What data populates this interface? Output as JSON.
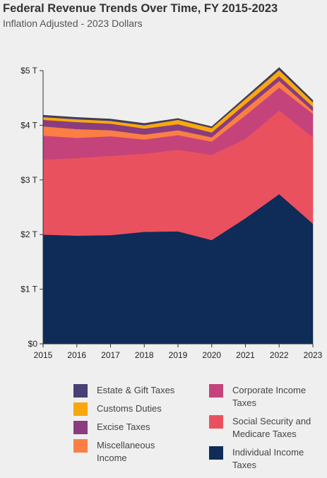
{
  "title": "Federal Revenue Trends Over Time, FY 2015-2023",
  "subtitle": "Inflation Adjusted - 2023 Dollars",
  "chart_data": {
    "type": "area",
    "stacked": true,
    "x": [
      "2015",
      "2016",
      "2017",
      "2018",
      "2019",
      "2020",
      "2021",
      "2022",
      "2023"
    ],
    "ylim": [
      0,
      5
    ],
    "yticks": [
      "$0",
      "$1 T",
      "$2 T",
      "$3 T",
      "$4 T",
      "$5 T"
    ],
    "grid": false,
    "legend_position": "bottom",
    "series": [
      {
        "name": "Individual Income Taxes",
        "color": "#0e2c57",
        "values": [
          2.0,
          1.98,
          1.99,
          2.05,
          2.06,
          1.9,
          2.3,
          2.74,
          2.2
        ]
      },
      {
        "name": "Social Security and Medicare Taxes",
        "color": "#ea515f",
        "values": [
          1.37,
          1.42,
          1.45,
          1.43,
          1.49,
          1.56,
          1.45,
          1.53,
          1.58
        ]
      },
      {
        "name": "Corporate Income Taxes",
        "color": "#c5437b",
        "values": [
          0.44,
          0.37,
          0.36,
          0.26,
          0.27,
          0.24,
          0.43,
          0.42,
          0.43
        ]
      },
      {
        "name": "Miscellaneous Income",
        "color": "#fb7e44",
        "values": [
          0.17,
          0.16,
          0.11,
          0.09,
          0.09,
          0.08,
          0.12,
          0.12,
          0.05
        ]
      },
      {
        "name": "Excise Taxes",
        "color": "#8a3c7e",
        "values": [
          0.12,
          0.13,
          0.12,
          0.11,
          0.11,
          0.09,
          0.09,
          0.09,
          0.08
        ]
      },
      {
        "name": "Customs Duties",
        "color": "#f8a80e",
        "values": [
          0.05,
          0.05,
          0.05,
          0.06,
          0.08,
          0.08,
          0.09,
          0.11,
          0.08
        ]
      },
      {
        "name": "Estate & Gift Taxes",
        "color": "#493e75",
        "values": [
          0.03,
          0.03,
          0.03,
          0.03,
          0.02,
          0.02,
          0.03,
          0.04,
          0.03
        ]
      }
    ]
  },
  "legend": [
    {
      "label": "Estate & Gift Taxes",
      "color": "#493e75"
    },
    {
      "label": "Customs Duties",
      "color": "#f8a80e"
    },
    {
      "label": "Excise Taxes",
      "color": "#8a3c7e"
    },
    {
      "label": "Miscellaneous Income",
      "color": "#fb7e44"
    },
    {
      "label": "Corporate Income Taxes",
      "color": "#c5437b"
    },
    {
      "label": "Social Security and Medicare Taxes",
      "color": "#ea515f"
    },
    {
      "label": "Individual Income Taxes",
      "color": "#0e2c57"
    }
  ]
}
